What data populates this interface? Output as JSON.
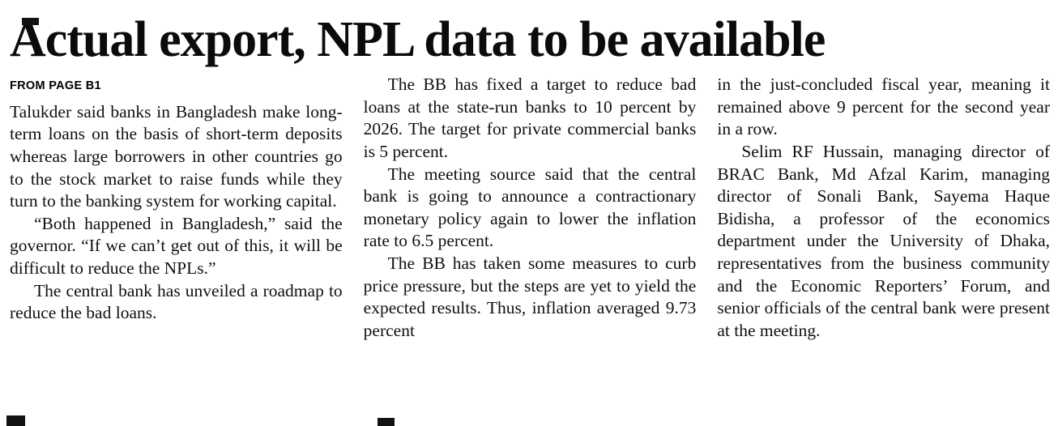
{
  "article": {
    "headline": "Actual export, NPL data to be available",
    "kicker": "FROM PAGE B1",
    "columns": [
      {
        "paragraphs": [
          "Talukder said banks in Bangladesh make long-term loans on the basis of short-term deposits whereas large borrowers in other countries go to the stock market to raise funds while they turn to the banking system for working capital.",
          "“Both happened in Bangladesh,” said the governor. “If we can’t get out of this, it will be difficult to reduce the NPLs.”",
          "The central bank has unveiled a roadmap to reduce the bad loans."
        ]
      },
      {
        "paragraphs": [
          "The BB has fixed a target to reduce bad loans at the state-run banks to 10 percent by 2026. The target for private commercial banks is 5 percent.",
          "The meeting source said that the central bank is going to announce a contractionary monetary policy again to lower the inflation rate to 6.5 percent.",
          "The BB has taken some measures to curb price pressure, but the steps are yet to yield the expected results. Thus, inflation averaged 9.73 percent"
        ]
      },
      {
        "paragraphs": [
          "in the just-concluded fiscal year, meaning it remained above 9 percent for the second year in a row.",
          "Selim RF Hussain, managing director of BRAC Bank, Md Afzal Karim, managing director of Sonali Bank, Sayema Haque Bidisha, a professor of the economics department under the University of Dhaka, representatives from the business community and the Economic Reporters’ Forum, and senior officials of the central bank were present at the meeting."
        ]
      }
    ]
  }
}
